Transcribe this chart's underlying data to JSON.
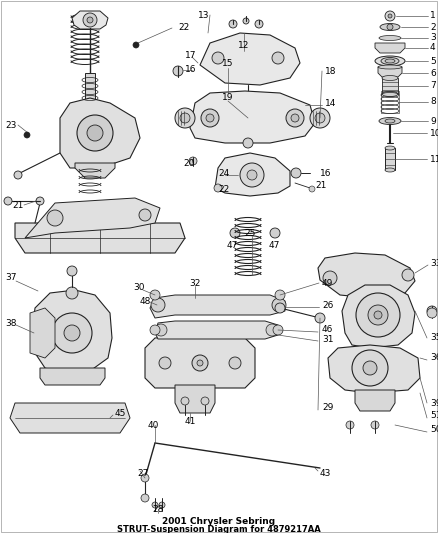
{
  "title_line1": "2001 Chrysler Sebring",
  "title_line2": "STRUT-Suspension Diagram for 4879217AA",
  "bg": "#ffffff",
  "fg": "#222222",
  "gray": "#888888",
  "lgray": "#cccccc",
  "figsize": [
    4.38,
    5.33
  ],
  "dpi": 100,
  "label_fs": 6.5,
  "title_fs": 6.5,
  "lw_part": 0.7,
  "lw_leader": 0.5
}
